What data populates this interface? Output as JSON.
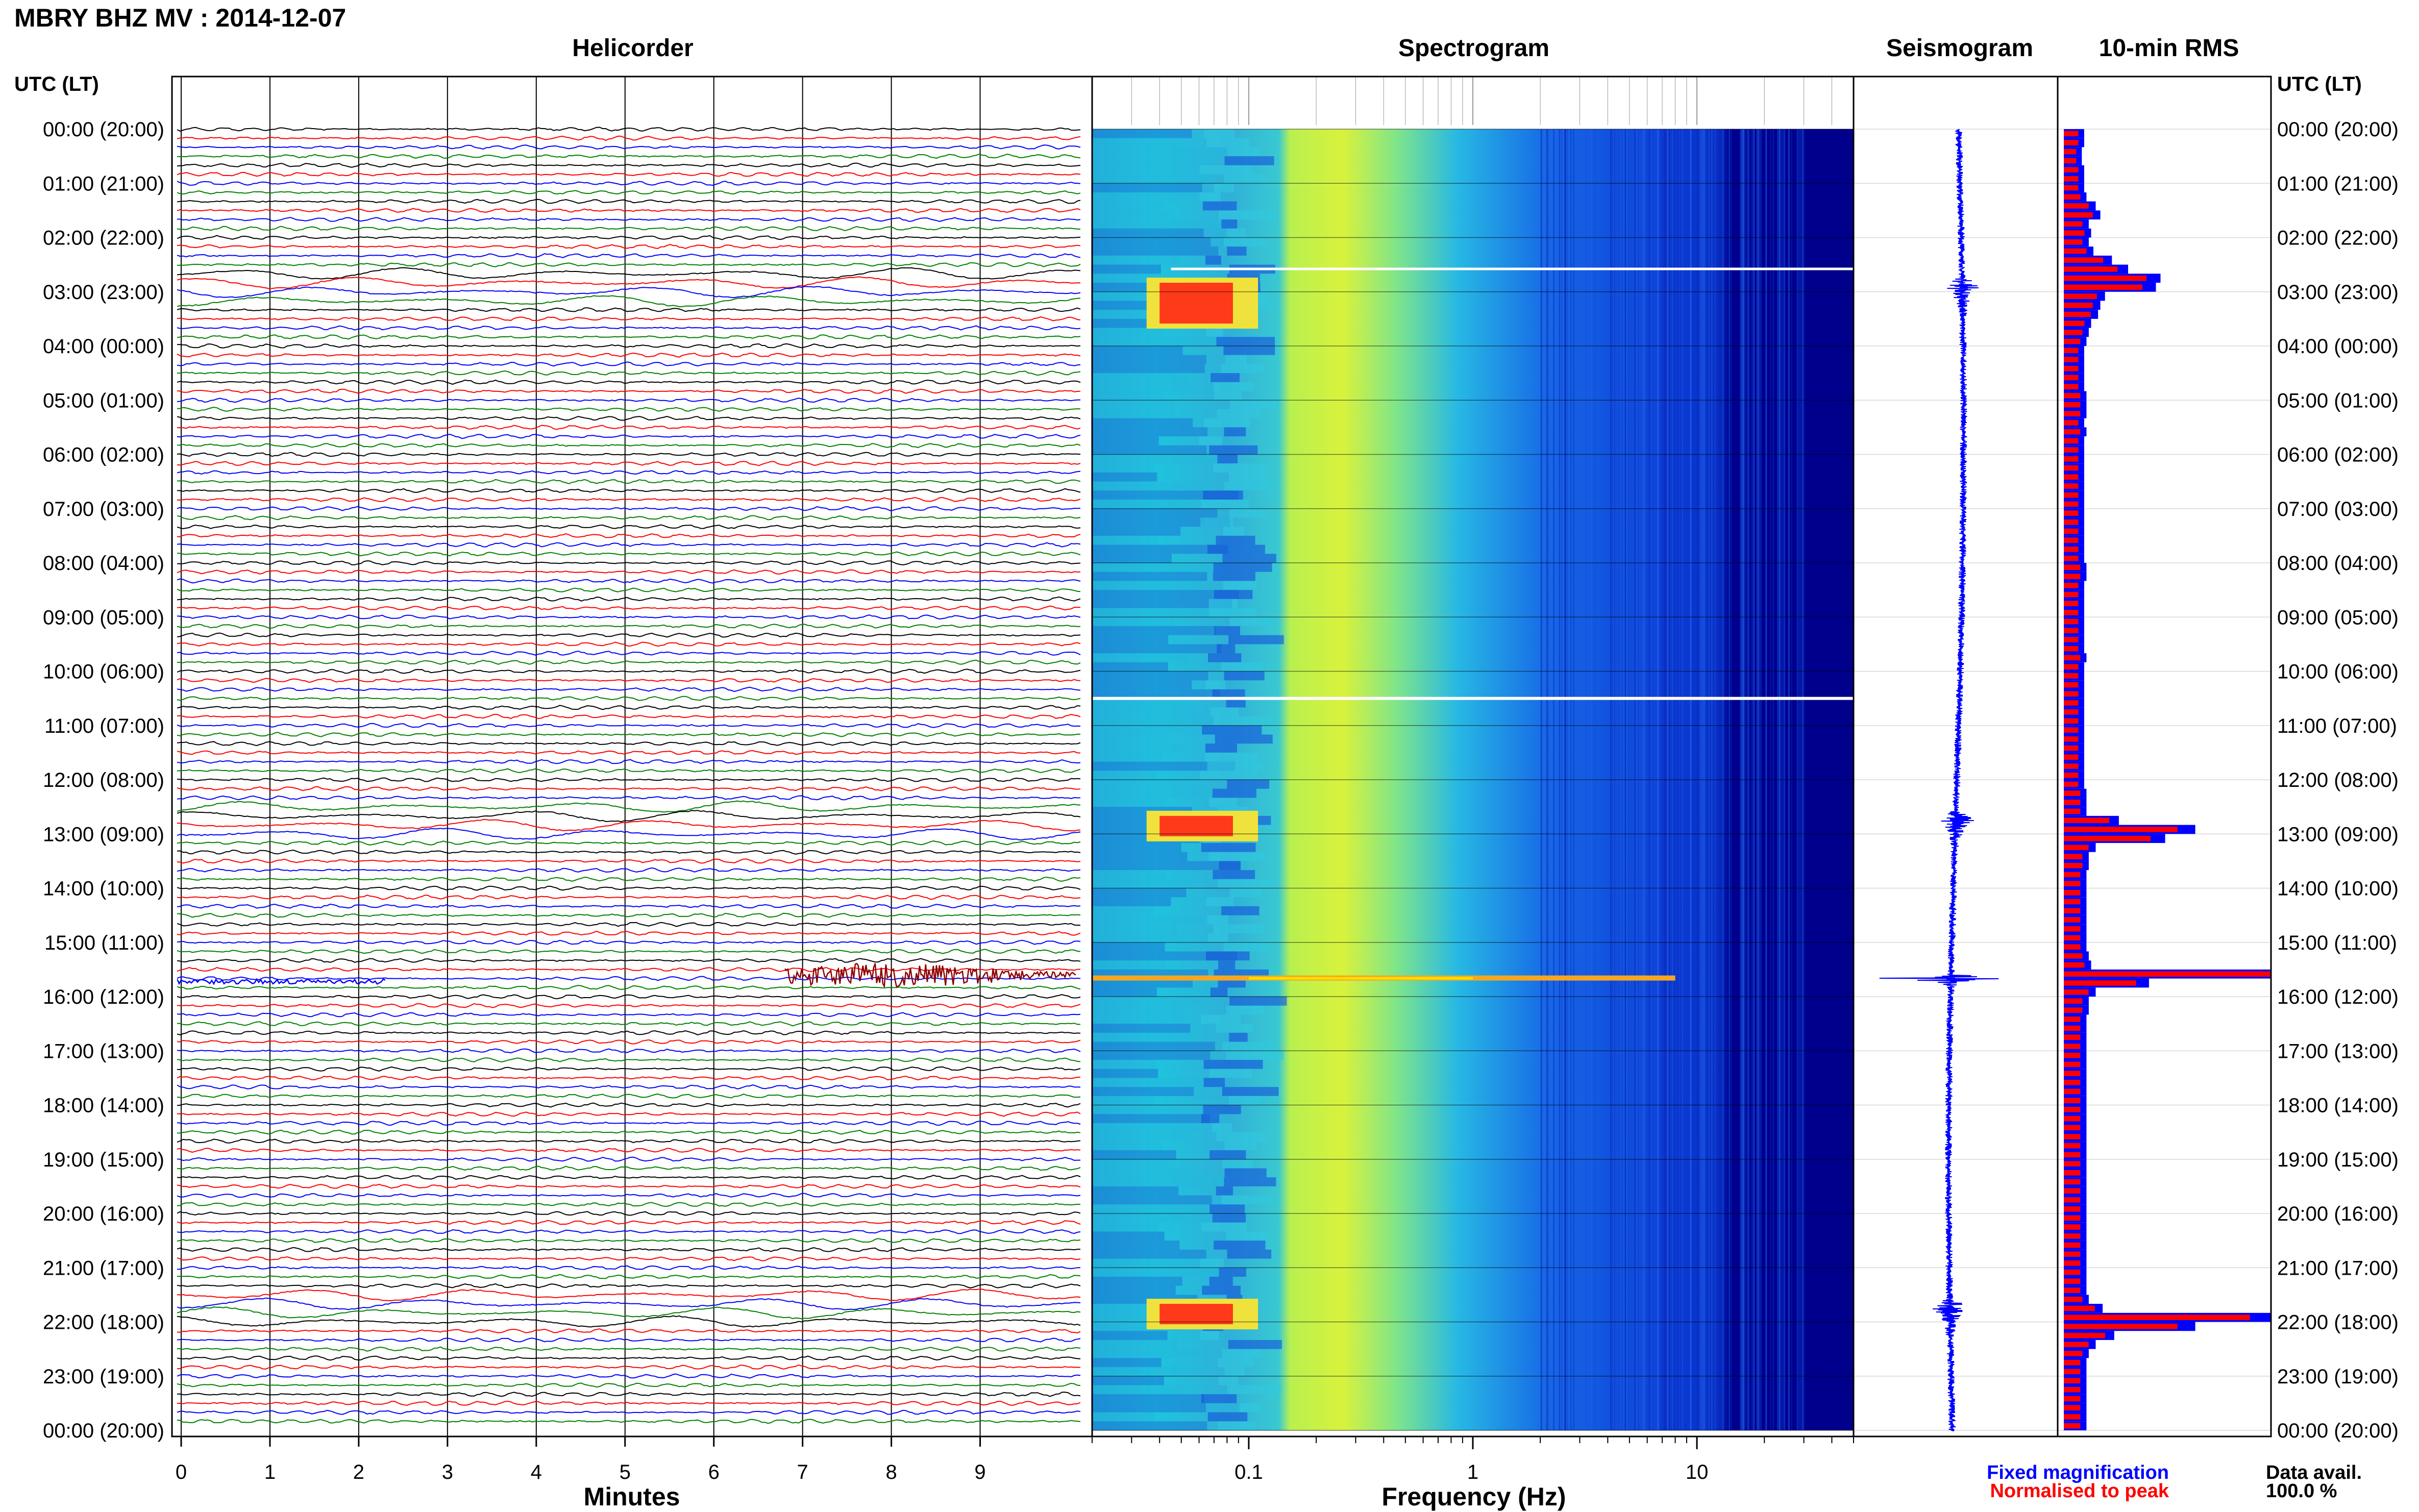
{
  "title": "MBRY BHZ MV : 2014-12-07",
  "panels": {
    "helicorder": "Helicorder",
    "spectrogram": "Spectrogram",
    "seismogram": "Seismogram",
    "rms": "10-min RMS"
  },
  "time_axis_label": "UTC (LT)",
  "time_labels": [
    "00:00 (20:00)",
    "01:00 (21:00)",
    "02:00 (22:00)",
    "03:00 (23:00)",
    "04:00 (00:00)",
    "05:00 (01:00)",
    "06:00 (02:00)",
    "07:00 (03:00)",
    "08:00 (04:00)",
    "09:00 (05:00)",
    "10:00 (06:00)",
    "11:00 (07:00)",
    "12:00 (08:00)",
    "13:00 (09:00)",
    "14:00 (10:00)",
    "15:00 (11:00)",
    "16:00 (12:00)",
    "17:00 (13:00)",
    "18:00 (14:00)",
    "19:00 (15:00)",
    "20:00 (16:00)",
    "21:00 (17:00)",
    "22:00 (18:00)",
    "23:00 (19:00)",
    "00:00 (20:00)"
  ],
  "x_axis_minutes": {
    "label": "Minutes",
    "ticks": [
      "0",
      "1",
      "2",
      "3",
      "4",
      "5",
      "6",
      "7",
      "8",
      "9"
    ]
  },
  "x_axis_frequency": {
    "label": "Frequency (Hz)",
    "ticks": [
      "0.1",
      "1",
      "10"
    ],
    "scale": "log",
    "range": [
      0.02,
      50
    ]
  },
  "legend": {
    "fixed": "Fixed magnification",
    "normalised": "Normalised to peak",
    "fixed_color": "#0000ff",
    "normalised_color": "#ff0000"
  },
  "data_avail": {
    "label": "Data avail.",
    "value": "100.0 %"
  },
  "colors": {
    "trace_cycle": [
      "#000000",
      "#ff0000",
      "#0000ff",
      "#008000"
    ],
    "event_trace": "#8b0000",
    "seismogram": "#0000ff",
    "rms_fixed": "#0000ff",
    "rms_normalised": "#ff0000",
    "spectrogram_low": "#00008b",
    "spectrogram_high": "#ff0000"
  },
  "chart_data": {
    "type": "heatmap",
    "rows_10min": 144,
    "hours": 24,
    "events": [
      {
        "time_utc": "02:50",
        "kind": "teleseism"
      },
      {
        "time_utc": "12:40",
        "kind": "teleseism"
      },
      {
        "time_utc": "15:40",
        "kind": "local event"
      },
      {
        "time_utc": "21:40",
        "kind": "teleseism"
      }
    ],
    "rms_normalised_fraction": [
      0.07,
      0.07,
      0.06,
      0.06,
      0.07,
      0.07,
      0.07,
      0.08,
      0.12,
      0.14,
      0.09,
      0.1,
      0.09,
      0.11,
      0.19,
      0.26,
      0.4,
      0.38,
      0.16,
      0.14,
      0.13,
      0.1,
      0.09,
      0.08,
      0.07,
      0.07,
      0.07,
      0.07,
      0.07,
      0.08,
      0.08,
      0.08,
      0.07,
      0.08,
      0.07,
      0.07,
      0.07,
      0.07,
      0.07,
      0.07,
      0.07,
      0.07,
      0.07,
      0.07,
      0.07,
      0.07,
      0.07,
      0.07,
      0.08,
      0.08,
      0.07,
      0.07,
      0.07,
      0.07,
      0.07,
      0.07,
      0.07,
      0.07,
      0.08,
      0.07,
      0.07,
      0.07,
      0.07,
      0.07,
      0.07,
      0.07,
      0.07,
      0.07,
      0.07,
      0.07,
      0.07,
      0.07,
      0.07,
      0.08,
      0.08,
      0.08,
      0.22,
      0.55,
      0.42,
      0.12,
      0.09,
      0.09,
      0.08,
      0.08,
      0.08,
      0.08,
      0.08,
      0.08,
      0.08,
      0.08,
      0.08,
      0.09,
      0.1,
      1.0,
      0.35,
      0.12,
      0.09,
      0.09,
      0.08,
      0.08,
      0.08,
      0.08,
      0.08,
      0.08,
      0.08,
      0.08,
      0.08,
      0.08,
      0.08,
      0.08,
      0.08,
      0.08,
      0.08,
      0.08,
      0.08,
      0.08,
      0.08,
      0.08,
      0.08,
      0.08,
      0.08,
      0.08,
      0.08,
      0.08,
      0.08,
      0.08,
      0.08,
      0.08,
      0.08,
      0.09,
      0.15,
      0.9,
      0.55,
      0.2,
      0.12,
      0.09,
      0.08,
      0.08,
      0.08,
      0.08,
      0.08,
      0.08,
      0.08,
      0.08
    ]
  }
}
